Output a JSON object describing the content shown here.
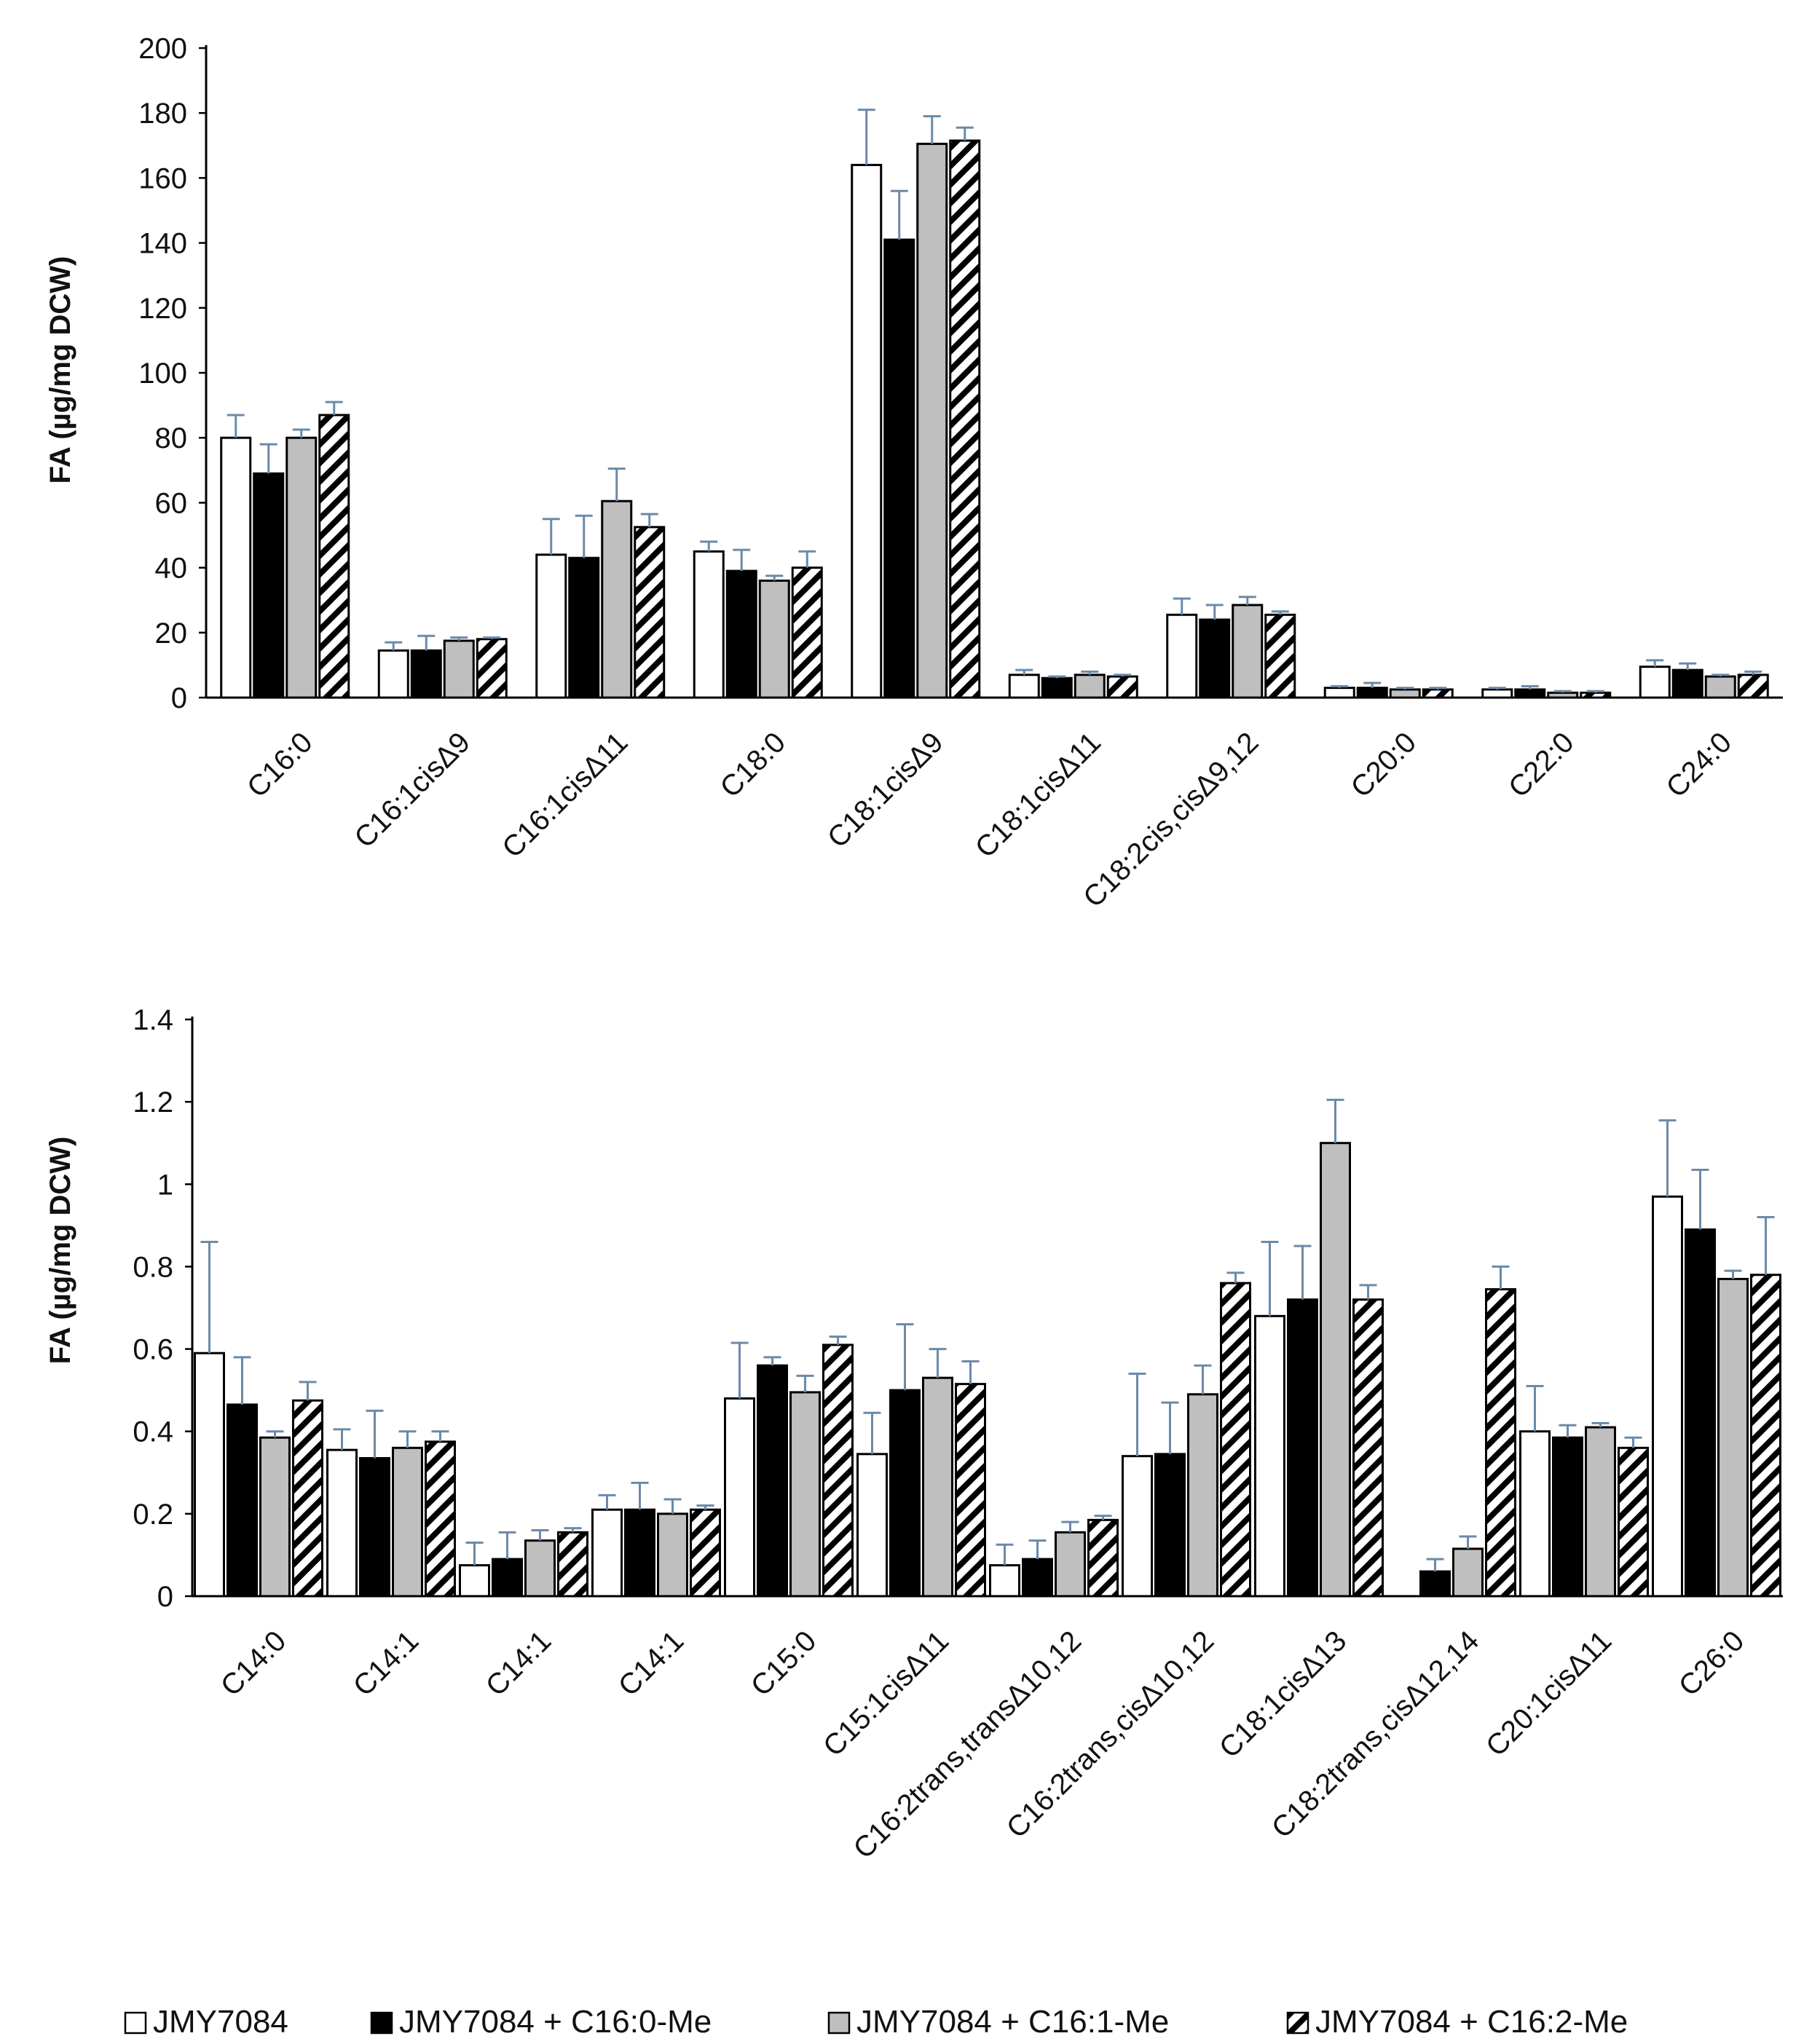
{
  "chart_data": [
    {
      "type": "bar",
      "title": "",
      "xlabel": "",
      "ylabel": "FA (µg/mg DCW)",
      "ylim": [
        0,
        200
      ],
      "yticks": [
        0,
        20,
        40,
        60,
        80,
        100,
        120,
        140,
        160,
        180,
        200
      ],
      "categories": [
        "C16:0",
        "C16:1cisΔ9",
        "C16:1cisΔ11",
        "C18:0",
        "C18:1cisΔ9",
        "C18:1cisΔ11",
        "C18:2cis,cisΔ9,12",
        "C20:0",
        "C22:0",
        "C24:0"
      ],
      "series": [
        {
          "name": "JMY7084",
          "values": [
            80,
            14.5,
            44,
            45,
            164,
            7,
            25.5,
            3,
            2.5,
            9.5
          ],
          "errors": [
            7,
            2.5,
            11,
            3,
            17,
            1.5,
            5,
            0.5,
            0.5,
            2
          ]
        },
        {
          "name": "JMY7084 + C16:0-Me",
          "values": [
            69,
            14.5,
            43,
            39,
            141,
            6,
            24,
            3,
            2.5,
            8.5
          ],
          "errors": [
            9,
            4.5,
            13,
            6.5,
            15,
            0.5,
            4.5,
            1.5,
            1,
            2
          ]
        },
        {
          "name": "JMY7084 + C16:1-Me",
          "values": [
            80,
            17.5,
            60.5,
            36,
            170.5,
            7,
            28.5,
            2.5,
            1.5,
            6.5
          ],
          "errors": [
            2.5,
            1,
            10,
            1.5,
            8.5,
            1,
            2.5,
            0.5,
            0.5,
            0.5
          ]
        },
        {
          "name": "JMY7084 + C16:2-Me",
          "values": [
            87,
            18,
            52.5,
            40,
            171.5,
            6.5,
            25.5,
            2.5,
            1.5,
            7
          ],
          "errors": [
            4,
            0.5,
            4,
            5,
            4,
            0.5,
            1,
            0.5,
            0.5,
            1
          ]
        }
      ]
    },
    {
      "type": "bar",
      "title": "",
      "xlabel": "",
      "ylabel": "FA (µg/mg DCW)",
      "ylim": [
        0,
        1.4
      ],
      "yticks": [
        0,
        0.2,
        0.4,
        0.6,
        0.8,
        1,
        1.2,
        1.4
      ],
      "ytick_labels": [
        "0",
        "0.2",
        "0.4",
        "0.6",
        "0.8",
        "1",
        "1.2",
        "1.4"
      ],
      "categories": [
        "C14:0",
        "C14:1",
        "C14:1",
        "C14:1",
        "C15:0",
        "C15:1cisΔ11",
        "C16:2trans,transΔ10,12",
        "C16:2trans,cisΔ10,12",
        "C18:1cisΔ13",
        "C18:2trans,cisΔ12,14",
        "C20:1cisΔ11",
        "C26:0"
      ],
      "series": [
        {
          "name": "JMY7084",
          "values": [
            0.59,
            0.355,
            0.075,
            0.21,
            0.48,
            0.345,
            0.075,
            0.34,
            0.68,
            0,
            0.4,
            0.97
          ],
          "errors": [
            0.27,
            0.05,
            0.055,
            0.035,
            0.135,
            0.1,
            0.05,
            0.2,
            0.18,
            0,
            0.11,
            0.185
          ]
        },
        {
          "name": "JMY7084 + C16:0-Me",
          "values": [
            0.465,
            0.335,
            0.09,
            0.21,
            0.56,
            0.5,
            0.09,
            0.345,
            0.72,
            0.06,
            0.385,
            0.89
          ],
          "errors": [
            0.115,
            0.115,
            0.065,
            0.065,
            0.02,
            0.16,
            0.045,
            0.125,
            0.13,
            0.03,
            0.03,
            0.145
          ]
        },
        {
          "name": "JMY7084 + C16:1-Me",
          "values": [
            0.385,
            0.36,
            0.135,
            0.2,
            0.495,
            0.53,
            0.155,
            0.49,
            1.1,
            0.115,
            0.41,
            0.77
          ],
          "errors": [
            0.015,
            0.04,
            0.025,
            0.035,
            0.04,
            0.07,
            0.025,
            0.07,
            0.105,
            0.03,
            0.01,
            0.02
          ]
        },
        {
          "name": "JMY7084 + C16:2-Me",
          "values": [
            0.475,
            0.375,
            0.155,
            0.21,
            0.61,
            0.515,
            0.185,
            0.76,
            0.72,
            0.745,
            0.36,
            0.78
          ],
          "errors": [
            0.045,
            0.025,
            0.01,
            0.01,
            0.02,
            0.055,
            0.01,
            0.025,
            0.035,
            0.055,
            0.025,
            0.14
          ]
        }
      ]
    }
  ],
  "legend": {
    "placement": "bottom",
    "entries": [
      "JMY7084",
      "JMY7084 + C16:0-Me",
      "JMY7084 + C16:1-Me",
      "JMY7084 + C16:2-Me"
    ]
  },
  "colors": {
    "series_fills": [
      "#ffffff",
      "#000000",
      "#bfbfbf",
      "hatch"
    ],
    "bar_outline": "#000000",
    "error_bar": "#6b8aa8",
    "axis": "#000000"
  }
}
